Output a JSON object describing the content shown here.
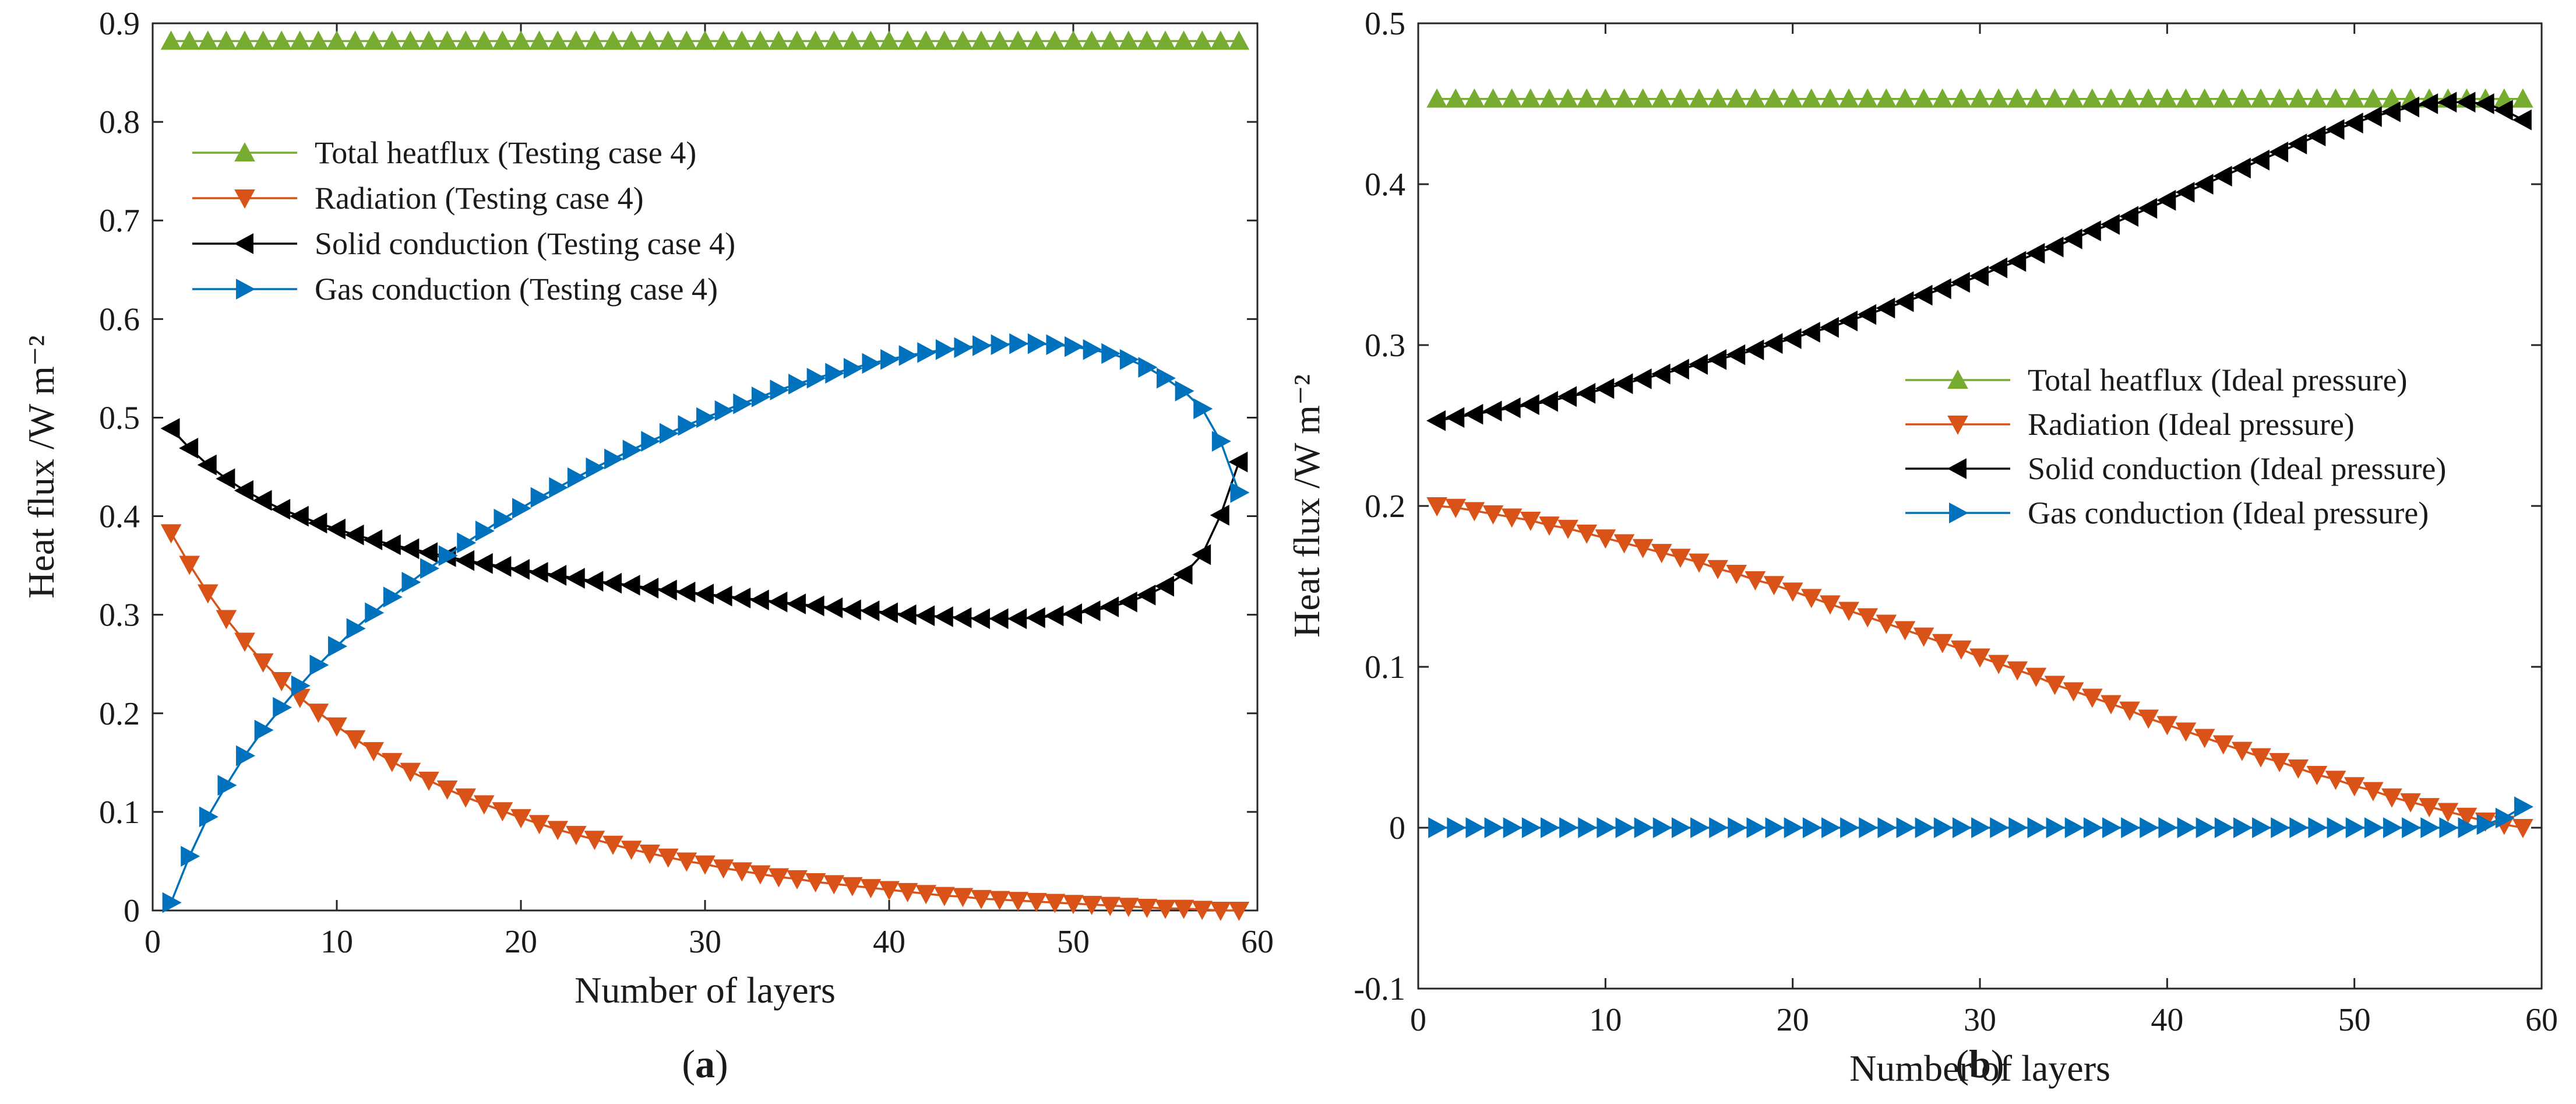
{
  "colors": {
    "total": "#77ac30",
    "radiation": "#d95319",
    "solid": "#000000",
    "gas": "#0072bd",
    "axis": "#262626"
  },
  "chart_data": [
    {
      "type": "line",
      "panel_label": "(a)",
      "panel_letter": "a",
      "xlabel": "Number of layers",
      "ylabel": "Heat flux /W m⁻²",
      "xlim": [
        0,
        60
      ],
      "ylim": [
        0,
        0.9
      ],
      "xticks": [
        0,
        10,
        20,
        30,
        40,
        50,
        60
      ],
      "xtick_labels": [
        "0",
        "10",
        "20",
        "30",
        "40",
        "50",
        "60"
      ],
      "yticks": [
        0,
        0.1,
        0.2,
        0.3,
        0.4,
        0.5,
        0.6,
        0.7,
        0.8,
        0.9
      ],
      "ytick_labels": [
        "0",
        "0.1",
        "0.2",
        "0.3",
        "0.4",
        "0.5",
        "0.6",
        "0.7",
        "0.8",
        "0.9"
      ],
      "legend_position": "top-left",
      "series": [
        {
          "key": "total",
          "name": "Total heatflux (Testing case 4)",
          "marker": "triangle-up",
          "x": [
            1,
            2,
            3,
            4,
            5,
            6,
            7,
            8,
            9,
            10,
            11,
            12,
            13,
            14,
            15,
            16,
            17,
            18,
            19,
            20,
            21,
            22,
            23,
            24,
            25,
            26,
            27,
            28,
            29,
            30,
            31,
            32,
            33,
            34,
            35,
            36,
            37,
            38,
            39,
            40,
            41,
            42,
            43,
            44,
            45,
            46,
            47,
            48,
            49,
            50,
            51,
            52,
            53,
            54,
            55,
            56,
            57,
            58,
            59
          ],
          "values": [
            0.882,
            0.882,
            0.882,
            0.882,
            0.882,
            0.882,
            0.882,
            0.882,
            0.882,
            0.882,
            0.882,
            0.882,
            0.882,
            0.882,
            0.882,
            0.882,
            0.882,
            0.882,
            0.882,
            0.882,
            0.882,
            0.882,
            0.882,
            0.882,
            0.882,
            0.882,
            0.882,
            0.882,
            0.882,
            0.882,
            0.882,
            0.882,
            0.882,
            0.882,
            0.882,
            0.882,
            0.882,
            0.882,
            0.882,
            0.882,
            0.882,
            0.882,
            0.882,
            0.882,
            0.882,
            0.882,
            0.882,
            0.882,
            0.882,
            0.882,
            0.882,
            0.882,
            0.882,
            0.882,
            0.882,
            0.882,
            0.882,
            0.882,
            0.882
          ]
        },
        {
          "key": "radiation",
          "name": "Radiation (Testing case 4)",
          "marker": "triangle-down",
          "x": [
            1,
            2,
            3,
            4,
            5,
            6,
            7,
            8,
            9,
            10,
            11,
            12,
            13,
            14,
            15,
            16,
            17,
            18,
            19,
            20,
            21,
            22,
            23,
            24,
            25,
            26,
            27,
            28,
            29,
            30,
            31,
            32,
            33,
            34,
            35,
            36,
            37,
            38,
            39,
            40,
            41,
            42,
            43,
            44,
            45,
            46,
            47,
            48,
            49,
            50,
            51,
            52,
            53,
            54,
            55,
            56,
            57,
            58,
            59
          ],
          "values": [
            0.383,
            0.351,
            0.322,
            0.296,
            0.273,
            0.252,
            0.233,
            0.216,
            0.201,
            0.187,
            0.174,
            0.162,
            0.151,
            0.141,
            0.132,
            0.123,
            0.115,
            0.108,
            0.101,
            0.094,
            0.088,
            0.082,
            0.077,
            0.072,
            0.067,
            0.062,
            0.058,
            0.054,
            0.05,
            0.047,
            0.043,
            0.04,
            0.037,
            0.034,
            0.032,
            0.029,
            0.027,
            0.025,
            0.023,
            0.021,
            0.019,
            0.017,
            0.015,
            0.014,
            0.012,
            0.011,
            0.01,
            0.009,
            0.008,
            0.007,
            0.006,
            0.005,
            0.004,
            0.003,
            0.002,
            0.002,
            0.001,
            0.0,
            0.0
          ]
        },
        {
          "key": "solid",
          "name": "Solid conduction (Testing case 4)",
          "marker": "triangle-left",
          "x": [
            1,
            2,
            3,
            4,
            5,
            6,
            7,
            8,
            9,
            10,
            11,
            12,
            13,
            14,
            15,
            16,
            17,
            18,
            19,
            20,
            21,
            22,
            23,
            24,
            25,
            26,
            27,
            28,
            29,
            30,
            31,
            32,
            33,
            34,
            35,
            36,
            37,
            38,
            39,
            40,
            41,
            42,
            43,
            44,
            45,
            46,
            47,
            48,
            49,
            50,
            51,
            52,
            53,
            54,
            55,
            56,
            57,
            58,
            59
          ],
          "values": [
            0.489,
            0.469,
            0.452,
            0.438,
            0.426,
            0.416,
            0.407,
            0.4,
            0.393,
            0.387,
            0.381,
            0.376,
            0.371,
            0.367,
            0.363,
            0.359,
            0.355,
            0.352,
            0.349,
            0.346,
            0.343,
            0.34,
            0.337,
            0.334,
            0.332,
            0.33,
            0.327,
            0.325,
            0.323,
            0.321,
            0.319,
            0.317,
            0.315,
            0.313,
            0.311,
            0.309,
            0.307,
            0.305,
            0.304,
            0.302,
            0.3,
            0.299,
            0.298,
            0.297,
            0.296,
            0.296,
            0.296,
            0.297,
            0.299,
            0.301,
            0.304,
            0.308,
            0.313,
            0.32,
            0.329,
            0.341,
            0.361,
            0.401,
            0.455
          ]
        },
        {
          "key": "gas",
          "name": "Gas conduction (Testing case 4)",
          "marker": "triangle-right",
          "x": [
            1,
            2,
            3,
            4,
            5,
            6,
            7,
            8,
            9,
            10,
            11,
            12,
            13,
            14,
            15,
            16,
            17,
            18,
            19,
            20,
            21,
            22,
            23,
            24,
            25,
            26,
            27,
            28,
            29,
            30,
            31,
            32,
            33,
            34,
            35,
            36,
            37,
            38,
            39,
            40,
            41,
            42,
            43,
            44,
            45,
            46,
            47,
            48,
            49,
            50,
            51,
            52,
            53,
            54,
            55,
            56,
            57,
            58,
            59
          ],
          "values": [
            0.008,
            0.055,
            0.095,
            0.127,
            0.157,
            0.183,
            0.206,
            0.228,
            0.249,
            0.268,
            0.286,
            0.302,
            0.318,
            0.333,
            0.347,
            0.36,
            0.373,
            0.385,
            0.397,
            0.408,
            0.419,
            0.429,
            0.439,
            0.449,
            0.458,
            0.467,
            0.476,
            0.484,
            0.492,
            0.5,
            0.507,
            0.514,
            0.521,
            0.528,
            0.534,
            0.54,
            0.545,
            0.55,
            0.555,
            0.559,
            0.563,
            0.566,
            0.569,
            0.571,
            0.573,
            0.574,
            0.575,
            0.575,
            0.574,
            0.572,
            0.569,
            0.565,
            0.559,
            0.551,
            0.54,
            0.527,
            0.509,
            0.476,
            0.424
          ]
        }
      ]
    },
    {
      "type": "line",
      "panel_label": "(b)",
      "panel_letter": "b",
      "xlabel": "Number of layers",
      "ylabel": "Heat flux /W m⁻²",
      "xlim": [
        0,
        60
      ],
      "ylim": [
        -0.1,
        0.5
      ],
      "xticks": [
        0,
        10,
        20,
        30,
        40,
        50,
        60
      ],
      "xtick_labels": [
        "0",
        "10",
        "20",
        "30",
        "40",
        "50",
        "60"
      ],
      "yticks": [
        -0.1,
        0,
        0.1,
        0.2,
        0.3,
        0.4,
        0.5
      ],
      "ytick_labels": [
        "-0.1",
        "0",
        "0.1",
        "0.2",
        "0.3",
        "0.4",
        "0.5"
      ],
      "legend_position": "center-right",
      "series": [
        {
          "key": "total",
          "name": "Total heatflux (Ideal pressure)",
          "marker": "triangle-up",
          "x": [
            1,
            2,
            3,
            4,
            5,
            6,
            7,
            8,
            9,
            10,
            11,
            12,
            13,
            14,
            15,
            16,
            17,
            18,
            19,
            20,
            21,
            22,
            23,
            24,
            25,
            26,
            27,
            28,
            29,
            30,
            31,
            32,
            33,
            34,
            35,
            36,
            37,
            38,
            39,
            40,
            41,
            42,
            43,
            44,
            45,
            46,
            47,
            48,
            49,
            50,
            51,
            52,
            53,
            54,
            55,
            56,
            57,
            58,
            59
          ],
          "values": [
            0.453,
            0.453,
            0.453,
            0.453,
            0.453,
            0.453,
            0.453,
            0.453,
            0.453,
            0.453,
            0.453,
            0.453,
            0.453,
            0.453,
            0.453,
            0.453,
            0.453,
            0.453,
            0.453,
            0.453,
            0.453,
            0.453,
            0.453,
            0.453,
            0.453,
            0.453,
            0.453,
            0.453,
            0.453,
            0.453,
            0.453,
            0.453,
            0.453,
            0.453,
            0.453,
            0.453,
            0.453,
            0.453,
            0.453,
            0.453,
            0.453,
            0.453,
            0.453,
            0.453,
            0.453,
            0.453,
            0.453,
            0.453,
            0.453,
            0.453,
            0.453,
            0.453,
            0.453,
            0.453,
            0.453,
            0.453,
            0.453,
            0.453,
            0.453
          ]
        },
        {
          "key": "radiation",
          "name": "Radiation (Ideal pressure)",
          "marker": "triangle-down",
          "x": [
            1,
            2,
            3,
            4,
            5,
            6,
            7,
            8,
            9,
            10,
            11,
            12,
            13,
            14,
            15,
            16,
            17,
            18,
            19,
            20,
            21,
            22,
            23,
            24,
            25,
            26,
            27,
            28,
            29,
            30,
            31,
            32,
            33,
            34,
            35,
            36,
            37,
            38,
            39,
            40,
            41,
            42,
            43,
            44,
            45,
            46,
            47,
            48,
            49,
            50,
            51,
            52,
            53,
            54,
            55,
            56,
            57,
            58,
            59
          ],
          "values": [
            0.2,
            0.199,
            0.197,
            0.195,
            0.193,
            0.191,
            0.188,
            0.186,
            0.183,
            0.18,
            0.177,
            0.174,
            0.171,
            0.168,
            0.165,
            0.161,
            0.158,
            0.154,
            0.151,
            0.147,
            0.143,
            0.139,
            0.135,
            0.131,
            0.127,
            0.123,
            0.119,
            0.115,
            0.111,
            0.106,
            0.102,
            0.098,
            0.094,
            0.089,
            0.085,
            0.081,
            0.077,
            0.073,
            0.068,
            0.064,
            0.06,
            0.056,
            0.052,
            0.048,
            0.044,
            0.041,
            0.037,
            0.033,
            0.03,
            0.026,
            0.023,
            0.019,
            0.016,
            0.013,
            0.01,
            0.007,
            0.004,
            0.002,
            0.0
          ]
        },
        {
          "key": "solid",
          "name": "Solid conduction (Ideal pressure)",
          "marker": "triangle-left",
          "x": [
            1,
            2,
            3,
            4,
            5,
            6,
            7,
            8,
            9,
            10,
            11,
            12,
            13,
            14,
            15,
            16,
            17,
            18,
            19,
            20,
            21,
            22,
            23,
            24,
            25,
            26,
            27,
            28,
            29,
            30,
            31,
            32,
            33,
            34,
            35,
            36,
            37,
            38,
            39,
            40,
            41,
            42,
            43,
            44,
            45,
            46,
            47,
            48,
            49,
            50,
            51,
            52,
            53,
            54,
            55,
            56,
            57,
            58,
            59
          ],
          "values": [
            0.253,
            0.255,
            0.257,
            0.259,
            0.261,
            0.263,
            0.265,
            0.268,
            0.27,
            0.273,
            0.276,
            0.279,
            0.282,
            0.285,
            0.288,
            0.291,
            0.294,
            0.297,
            0.301,
            0.304,
            0.308,
            0.311,
            0.315,
            0.319,
            0.323,
            0.327,
            0.331,
            0.335,
            0.339,
            0.343,
            0.348,
            0.352,
            0.357,
            0.361,
            0.366,
            0.371,
            0.375,
            0.38,
            0.385,
            0.39,
            0.395,
            0.4,
            0.405,
            0.41,
            0.415,
            0.42,
            0.425,
            0.43,
            0.434,
            0.438,
            0.442,
            0.445,
            0.448,
            0.45,
            0.451,
            0.451,
            0.45,
            0.446,
            0.44
          ]
        },
        {
          "key": "gas",
          "name": "Gas conduction (Ideal pressure)",
          "marker": "triangle-right",
          "x": [
            1,
            2,
            3,
            4,
            5,
            6,
            7,
            8,
            9,
            10,
            11,
            12,
            13,
            14,
            15,
            16,
            17,
            18,
            19,
            20,
            21,
            22,
            23,
            24,
            25,
            26,
            27,
            28,
            29,
            30,
            31,
            32,
            33,
            34,
            35,
            36,
            37,
            38,
            39,
            40,
            41,
            42,
            43,
            44,
            45,
            46,
            47,
            48,
            49,
            50,
            51,
            52,
            53,
            54,
            55,
            56,
            57,
            58,
            59
          ],
          "values": [
            0,
            0,
            0,
            0,
            0,
            0,
            0,
            0,
            0,
            0,
            0,
            0,
            0,
            0,
            0,
            0,
            0,
            0,
            0,
            0,
            0,
            0,
            0,
            0,
            0,
            0,
            0,
            0,
            0,
            0,
            0,
            0,
            0,
            0,
            0,
            0,
            0,
            0,
            0,
            0,
            0,
            0,
            0,
            0,
            0,
            0,
            0,
            0,
            0,
            0,
            0,
            0,
            0,
            0,
            0,
            0,
            0.002,
            0.006,
            0.013
          ]
        }
      ]
    }
  ]
}
